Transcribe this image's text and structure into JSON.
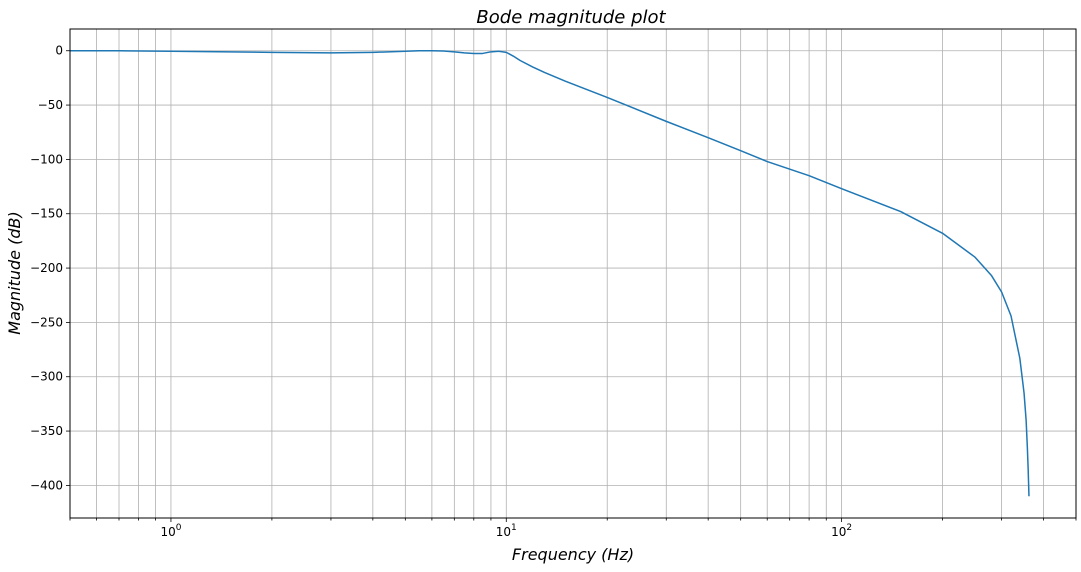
{
  "chart_data": {
    "type": "line",
    "title": "Bode magnitude plot",
    "xlabel": "Frequency (Hz)",
    "ylabel": "Magnitude (dB)",
    "x_scale": "log",
    "xlim": [
      0.5,
      500
    ],
    "ylim": [
      -430,
      20
    ],
    "grid": true,
    "grid_minor_x": true,
    "x_major_ticks": [
      {
        "value": 1,
        "base": "10",
        "exp": "0"
      },
      {
        "value": 10,
        "base": "10",
        "exp": "1"
      },
      {
        "value": 100,
        "base": "10",
        "exp": "2"
      }
    ],
    "y_ticks": [
      0,
      -50,
      -100,
      -150,
      -200,
      -250,
      -300,
      -350,
      -400
    ],
    "y_tick_labels": [
      "0",
      "−50",
      "−100",
      "−150",
      "−200",
      "−250",
      "−300",
      "−350",
      "−400"
    ],
    "line_color": "#1f77b4",
    "grid_color": "#b0b0b0",
    "series": [
      {
        "x": [
          0.5,
          0.7,
          1,
          1.5,
          2,
          3,
          4,
          5,
          5.5,
          6,
          6.5,
          7,
          7.5,
          8,
          8.5,
          9,
          9.5,
          10,
          10.5,
          11,
          12,
          13,
          15,
          20,
          30,
          40,
          50,
          60,
          80,
          100,
          150,
          200,
          250,
          280,
          300,
          320,
          340,
          350,
          355,
          358,
          360,
          362
        ],
        "y": [
          0,
          0,
          -0.5,
          -1,
          -1.5,
          -2,
          -1.5,
          -0.5,
          0,
          0,
          -0.3,
          -1,
          -2,
          -2.5,
          -2.5,
          -1,
          -0.5,
          -1.5,
          -5,
          -9,
          -15,
          -20,
          -28,
          -43,
          -65,
          -80,
          -92,
          -102,
          -115,
          -127,
          -148,
          -168,
          -190,
          -207,
          -222,
          -244,
          -283,
          -315,
          -340,
          -365,
          -385,
          -410
        ]
      }
    ]
  }
}
